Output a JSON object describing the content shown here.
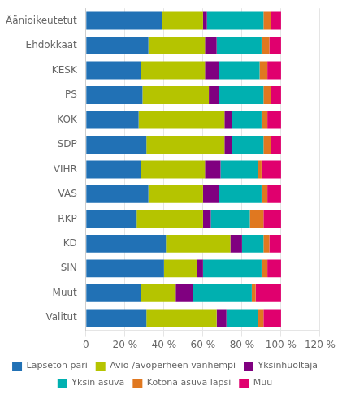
{
  "chart_data": {
    "type": "bar",
    "orientation": "horizontal",
    "stacked": true,
    "categories": [
      "Äänioikeutetut",
      "Ehdokkaat",
      "KESK",
      "PS",
      "KOK",
      "SDP",
      "VIHR",
      "VAS",
      "RKP",
      "KD",
      "SIN",
      "Muut",
      "Valitut"
    ],
    "series": [
      {
        "name": "Lapseton pari",
        "color": "#2171b5",
        "values": [
          39,
          32,
          28,
          29,
          27,
          31,
          28,
          32,
          26,
          41,
          40,
          28,
          31
        ]
      },
      {
        "name": "Avio-/avoperheen vanhempi",
        "color": "#b5c400",
        "values": [
          21,
          29,
          33,
          34,
          44,
          40,
          33,
          28,
          34,
          33,
          17,
          18,
          36
        ]
      },
      {
        "name": "Yksinhuoltaja",
        "color": "#800080",
        "values": [
          2,
          6,
          7,
          5,
          4,
          4,
          8,
          8,
          4,
          6,
          3,
          9,
          5
        ]
      },
      {
        "name": "Yksin asuva",
        "color": "#00b0b0",
        "values": [
          29,
          23,
          21,
          23,
          15,
          16,
          19,
          22,
          20,
          11,
          30,
          30,
          16
        ]
      },
      {
        "name": "Kotona asuva lapsi",
        "color": "#e07820",
        "values": [
          4,
          4,
          4,
          4,
          3,
          4,
          2,
          3,
          7,
          3,
          3,
          2,
          3
        ]
      },
      {
        "name": "Muu",
        "color": "#e0006e",
        "values": [
          5,
          6,
          7,
          5,
          7,
          5,
          10,
          7,
          9,
          6,
          7,
          13,
          9
        ]
      }
    ],
    "xlim": [
      0,
      120
    ],
    "xticks": [
      0,
      {
        "value": 20,
        "label": "20 %"
      },
      {
        "value": 40,
        "label": "40 %"
      },
      {
        "value": 60,
        "label": "60 %"
      },
      {
        "value": 80,
        "label": "80 %"
      },
      {
        "value": 100,
        "label": "100 %"
      },
      {
        "value": 120,
        "label": "120 %"
      }
    ],
    "grid": true,
    "legend": "bottom"
  }
}
